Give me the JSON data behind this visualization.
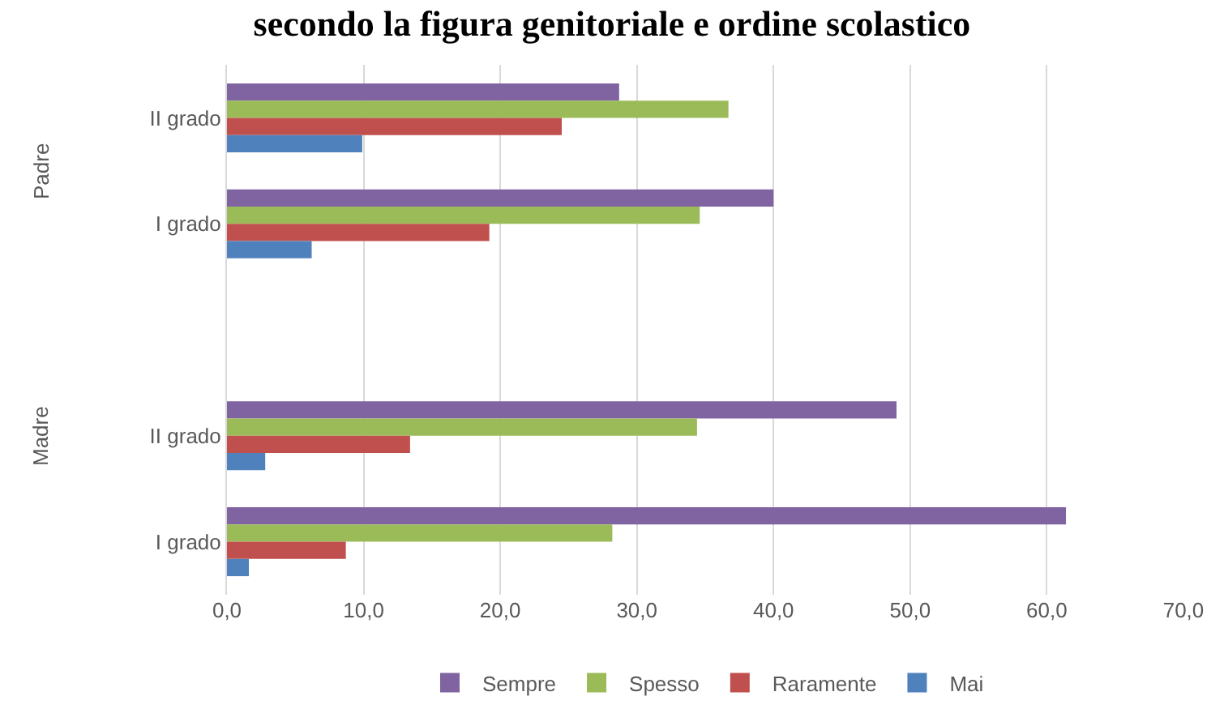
{
  "chart_data": {
    "type": "bar",
    "orientation": "horizontal",
    "title": "secondo la figura genitoriale e ordine scolastico",
    "categories": [
      "II grado",
      "I grado",
      null,
      "II grado",
      "I grado"
    ],
    "series": [
      {
        "name": "Sempre",
        "color": "#8064a2",
        "values": [
          28.7,
          40.0,
          null,
          49.0,
          61.4
        ]
      },
      {
        "name": "Spesso",
        "color": "#9bbb59",
        "values": [
          36.7,
          34.6,
          null,
          34.4,
          28.2
        ]
      },
      {
        "name": "Raramente",
        "color": "#c0504d",
        "values": [
          24.5,
          19.2,
          null,
          13.4,
          8.7
        ]
      },
      {
        "name": "Mai",
        "color": "#4f81bd",
        "values": [
          9.9,
          6.2,
          null,
          2.8,
          1.6
        ]
      }
    ],
    "annotations": [
      "Padre",
      "Madre"
    ],
    "xlim": [
      0,
      70
    ],
    "xticks": [
      {
        "value": 0,
        "label": "0,0"
      },
      {
        "value": 10,
        "label": "10,0"
      },
      {
        "value": 20,
        "label": "20,0"
      },
      {
        "value": 30,
        "label": "30,0"
      },
      {
        "value": 40,
        "label": "40,0"
      },
      {
        "value": 50,
        "label": "50,0"
      },
      {
        "value": 60,
        "label": "60,0"
      },
      {
        "value": 70,
        "label": "70,0"
      }
    ],
    "grid": "x",
    "legend": "bottom"
  }
}
